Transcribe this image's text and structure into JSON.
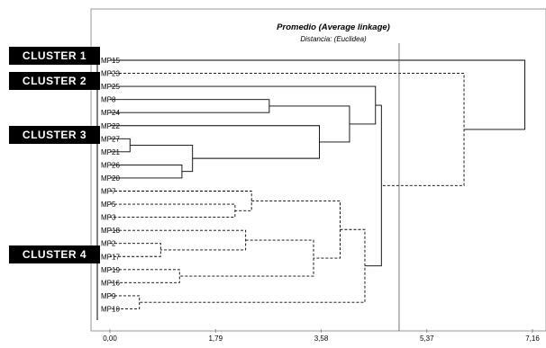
{
  "title": "Promedio (Average linkage)",
  "subtitle": "Distancia: (Euclidea)",
  "x_ticks": [
    "0,00",
    "1,79",
    "3,58",
    "5,37",
    "7,16"
  ],
  "clusters": [
    {
      "label": "CLUSTER 1"
    },
    {
      "label": "CLUSTER 2"
    },
    {
      "label": "CLUSTER 3"
    },
    {
      "label": "CLUSTER 4"
    }
  ],
  "leaves": [
    "MP15",
    "MP23",
    "MP25",
    "MP8",
    "MP24",
    "MP22",
    "MP27",
    "MP21",
    "MP26",
    "MP20",
    "MP7",
    "MP5",
    "MP3",
    "MP18",
    "MP2",
    "MP17",
    "MP19",
    "MP16",
    "MP9",
    "MP10"
  ],
  "chart_data": {
    "type": "dendrogram",
    "title": "Promedio (Average linkage)",
    "subtitle": "Distancia: (Euclidea)",
    "xlim": [
      0,
      7.16
    ],
    "x_ticks": [
      0,
      1.79,
      3.58,
      5.37,
      7.16
    ],
    "cut_line": 4.9,
    "leaves": [
      "MP15",
      "MP23",
      "MP25",
      "MP8",
      "MP24",
      "MP22",
      "MP27",
      "MP21",
      "MP26",
      "MP20",
      "MP7",
      "MP5",
      "MP3",
      "MP18",
      "MP2",
      "MP17",
      "MP19",
      "MP16",
      "MP9",
      "MP10"
    ],
    "merges": [
      {
        "id": "n1",
        "children": [
          "MP27",
          "MP21"
        ],
        "height": 0.34,
        "style": "solid"
      },
      {
        "id": "n2",
        "children": [
          "MP26",
          "MP20"
        ],
        "height": 1.22,
        "style": "solid"
      },
      {
        "id": "n3",
        "children": [
          "n1",
          "n2"
        ],
        "height": 1.4,
        "style": "solid"
      },
      {
        "id": "n4",
        "children": [
          "MP22",
          "n3"
        ],
        "height": 3.55,
        "style": "solid"
      },
      {
        "id": "n5",
        "children": [
          "MP8",
          "MP24"
        ],
        "height": 2.7,
        "style": "solid"
      },
      {
        "id": "n6",
        "children": [
          "n5",
          "n4"
        ],
        "height": 4.06,
        "style": "solid"
      },
      {
        "id": "n7",
        "children": [
          "MP25",
          "n6"
        ],
        "height": 4.5,
        "style": "solid"
      },
      {
        "id": "n8",
        "children": [
          "MP5",
          "MP3"
        ],
        "height": 2.12,
        "style": "dashed"
      },
      {
        "id": "n9",
        "children": [
          "MP7",
          "n8"
        ],
        "height": 2.4,
        "style": "dashed"
      },
      {
        "id": "n10",
        "children": [
          "MP2",
          "MP17"
        ],
        "height": 0.86,
        "style": "dashed"
      },
      {
        "id": "n11",
        "children": [
          "MP18",
          "n10"
        ],
        "height": 2.3,
        "style": "dashed"
      },
      {
        "id": "n12",
        "children": [
          "MP19",
          "MP16"
        ],
        "height": 1.18,
        "style": "dashed"
      },
      {
        "id": "n13",
        "children": [
          "n11",
          "n12"
        ],
        "height": 3.45,
        "style": "dashed"
      },
      {
        "id": "n14",
        "children": [
          "n9",
          "n13"
        ],
        "height": 3.9,
        "style": "dashed"
      },
      {
        "id": "n15",
        "children": [
          "MP9",
          "MP10"
        ],
        "height": 0.5,
        "style": "dashed"
      },
      {
        "id": "n16",
        "children": [
          "n14",
          "n15"
        ],
        "height": 4.32,
        "style": "dashed"
      },
      {
        "id": "n17",
        "children": [
          "n7",
          "n16"
        ],
        "height": 4.6,
        "style": "solid"
      },
      {
        "id": "n18",
        "children": [
          "MP23",
          "n17"
        ],
        "height": 6.0,
        "style": "dashed"
      },
      {
        "id": "n19",
        "children": [
          "MP15",
          "n18"
        ],
        "height": 7.03,
        "style": "solid"
      }
    ]
  }
}
